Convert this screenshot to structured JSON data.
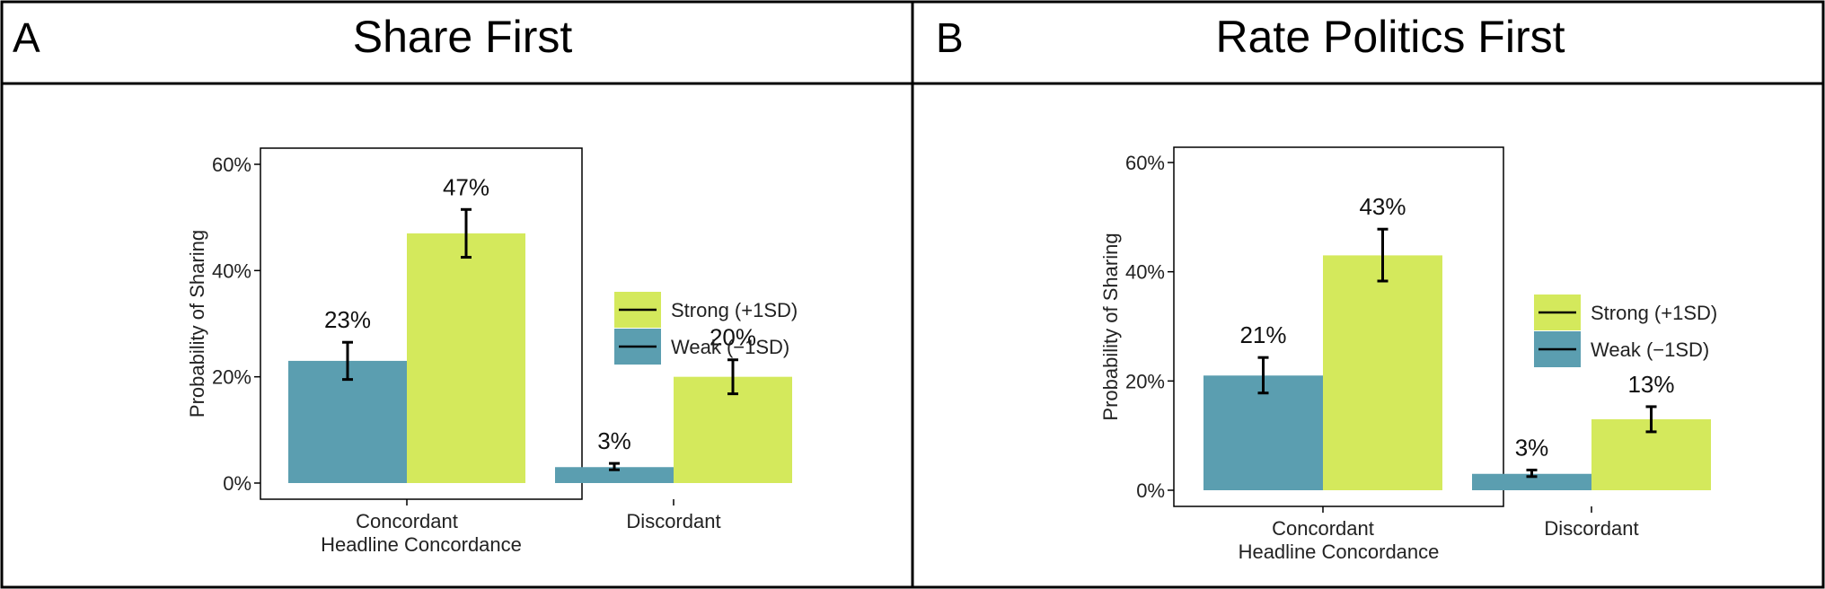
{
  "colors": {
    "weak": "#5b9eb0",
    "strong": "#d4e95c",
    "border": "#000000"
  },
  "chart_data": [
    {
      "type": "bar",
      "panel_label": "A",
      "title": "Share First",
      "xlabel": "Headline Concordance",
      "ylabel": "Probability of Sharing",
      "categories": [
        "Concordant",
        "Discordant"
      ],
      "ylim": [
        0,
        0.62
      ],
      "yticks": [
        0,
        0.2,
        0.4,
        0.6
      ],
      "ytick_labels": [
        "0%",
        "20%",
        "40%",
        "60%"
      ],
      "grid": false,
      "legend_position": "right",
      "legend": [
        "Strong (+1SD)",
        "Weak (−1SD)"
      ],
      "series": [
        {
          "name": "Weak (−1SD)",
          "color": "#5b9eb0",
          "values": [
            0.23,
            0.03
          ],
          "errors": [
            [
              0.195,
              0.265
            ],
            [
              0.025,
              0.037
            ]
          ],
          "labels": [
            "23%",
            "3%"
          ]
        },
        {
          "name": "Strong (+1SD)",
          "color": "#d4e95c",
          "values": [
            0.47,
            0.2
          ],
          "errors": [
            [
              0.425,
              0.515
            ],
            [
              0.168,
              0.232
            ]
          ],
          "labels": [
            "47%",
            "20%"
          ]
        }
      ]
    },
    {
      "type": "bar",
      "panel_label": "B",
      "title": "Rate Politics First",
      "xlabel": "Headline Concordance",
      "ylabel": "Probability of Sharing",
      "categories": [
        "Concordant",
        "Discordant"
      ],
      "ylim": [
        0,
        0.62
      ],
      "yticks": [
        0,
        0.2,
        0.4,
        0.6
      ],
      "ytick_labels": [
        "0%",
        "20%",
        "40%",
        "60%"
      ],
      "grid": false,
      "legend_position": "right",
      "legend": [
        "Strong (+1SD)",
        "Weak (−1SD)"
      ],
      "series": [
        {
          "name": "Weak (−1SD)",
          "color": "#5b9eb0",
          "values": [
            0.21,
            0.03
          ],
          "errors": [
            [
              0.178,
              0.243
            ],
            [
              0.025,
              0.037
            ]
          ],
          "labels": [
            "21%",
            "3%"
          ]
        },
        {
          "name": "Strong (+1SD)",
          "color": "#d4e95c",
          "values": [
            0.43,
            0.13
          ],
          "errors": [
            [
              0.383,
              0.478
            ],
            [
              0.107,
              0.153
            ]
          ],
          "labels": [
            "43%",
            "13%"
          ]
        }
      ]
    }
  ]
}
